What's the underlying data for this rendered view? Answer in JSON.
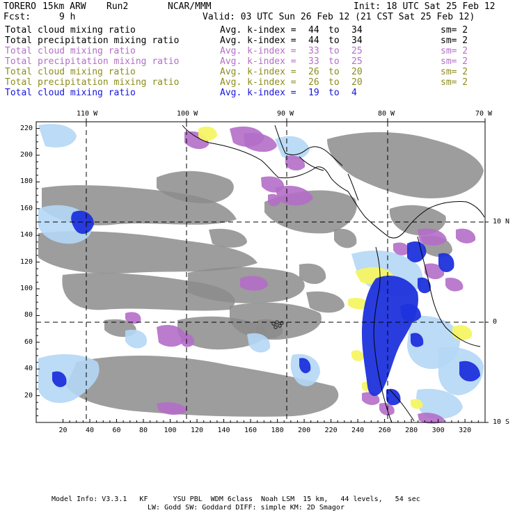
{
  "header": {
    "model": "TORERO",
    "resolution": "15km ARW",
    "run": "Run2",
    "org": "NCAR/MMM",
    "init": "Init: 18 UTC Sat 25 Feb 12",
    "fcst_label": "Fcst:",
    "fcst_value": "9 h",
    "valid": "Valid: 03 UTC Sun 26 Feb 12 (21 CST Sat 25 Feb 12)"
  },
  "legend": [
    {
      "field": "Total cloud mixing ratio",
      "index": "Avg. k-index =",
      "from": "44",
      "to_word": "to",
      "to": "34",
      "sm": "sm= 2",
      "color": "#000000"
    },
    {
      "field": "Total precipitation mixing ratio",
      "index": "Avg. k-index =",
      "from": "44",
      "to_word": "to",
      "to": "34",
      "sm": "sm= 2",
      "color": "#000000"
    },
    {
      "field": "Total cloud mixing ratio",
      "index": "Avg. k-index =",
      "from": "33",
      "to_word": "to",
      "to": "25",
      "sm": "sm= 2",
      "color": "#b46ec8"
    },
    {
      "field": "Total precipitation mixing ratio",
      "index": "Avg. k-index =",
      "from": "33",
      "to_word": "to",
      "to": "25",
      "sm": "sm= 2",
      "color": "#b46ec8"
    },
    {
      "field": "Total cloud mixing ratio",
      "index": "Avg. k-index =",
      "from": "26",
      "to_word": "to",
      "to": "20",
      "sm": "sm= 2",
      "color": "#8c8c1e"
    },
    {
      "field": "Total precipitation mixing ratio",
      "index": "Avg. k-index =",
      "from": "26",
      "to_word": "to",
      "to": "20",
      "sm": "sm= 2",
      "color": "#8c8c1e"
    },
    {
      "field": "Total cloud mixing ratio",
      "index": "Avg. k-index =",
      "from": "19",
      "to_word": "to",
      "to": "4",
      "sm": "",
      "color": "#1414dc"
    }
  ],
  "map": {
    "lon_labels": [
      "110 W",
      "100 W",
      "90 W",
      "80 W",
      "70 W"
    ],
    "lat_labels": [
      "10 N",
      "0",
      "10 S"
    ],
    "y_ticks": [
      "220",
      "200",
      "180",
      "160",
      "140",
      "120",
      "100",
      "80",
      "60",
      "40",
      "20"
    ],
    "x_ticks": [
      "20",
      "40",
      "60",
      "80",
      "100",
      "120",
      "140",
      "160",
      "180",
      "200",
      "220",
      "240",
      "260",
      "280",
      "300",
      "320"
    ],
    "colors": {
      "gray": "#8c8c8c",
      "purple": "#b46ec8",
      "yellow": "#f5f564",
      "lightblue": "#b4d7f5",
      "blue": "#1e32dc"
    }
  },
  "footer": {
    "line1": "Model Info: V3.3.1   KF      YSU PBL  WDM 6class  Noah LSM  15 km,   44 levels,   54 sec",
    "line2": "LW: Godd SW: Goddard DIFF: simple KM: 2D Smagor"
  }
}
